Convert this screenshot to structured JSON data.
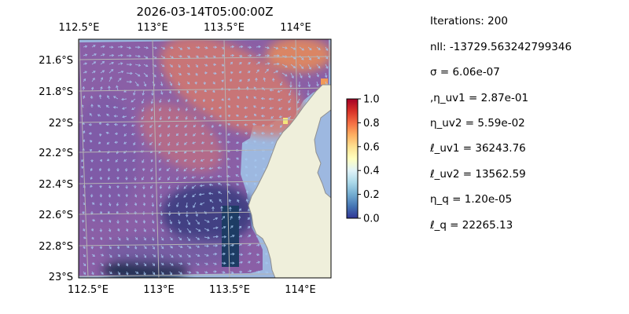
{
  "chart_data": {
    "type": "heatmap",
    "title": "2026-03-14T05:00:00Z",
    "x_ticks": [
      "112.5°E",
      "113°E",
      "113.5°E",
      "114°E"
    ],
    "x_tick_values": [
      112.5,
      113.0,
      113.5,
      114.0
    ],
    "y_ticks": [
      "21.6°S",
      "21.8°S",
      "22°S",
      "22.2°S",
      "22.4°S",
      "22.6°S",
      "22.8°S",
      "23°S"
    ],
    "y_tick_values": [
      -21.6,
      -21.8,
      -22.0,
      -22.2,
      -22.4,
      -22.6,
      -22.8,
      -23.0
    ],
    "xlim": [
      112.5,
      114.2
    ],
    "ylim": [
      -23.0,
      -21.45
    ],
    "grid": true,
    "colormap": "RdYlBu_r",
    "colorbar": {
      "range": [
        0.0,
        1.0
      ],
      "ticks": [
        "0.0",
        "0.2",
        "0.4",
        "0.6",
        "0.8",
        "1.0"
      ],
      "colors": [
        "#313695",
        "#4575b4",
        "#74add1",
        "#abd9e9",
        "#e0f3f8",
        "#ffffbf",
        "#fee090",
        "#fdae61",
        "#f46d43",
        "#d73027",
        "#a50026"
      ]
    },
    "colors": {
      "ocean": "#9db8e0",
      "land": "#efefdb",
      "coast": "#8f8f8f",
      "grid": "#b4b4b4",
      "arrow": "#a6c8f0"
    }
  },
  "stats": [
    "Iterations: 200",
    "nll: -13729.563242799346",
    "σ = 6.06e-07",
    ",η_uv1 = 2.87e-01",
    "η_uv2 = 5.59e-02",
    "ℓ_uv1 = 36243.76",
    "ℓ_uv2 = 13562.59",
    "η_q = 1.20e-05",
    "ℓ_q = 22265.13"
  ]
}
